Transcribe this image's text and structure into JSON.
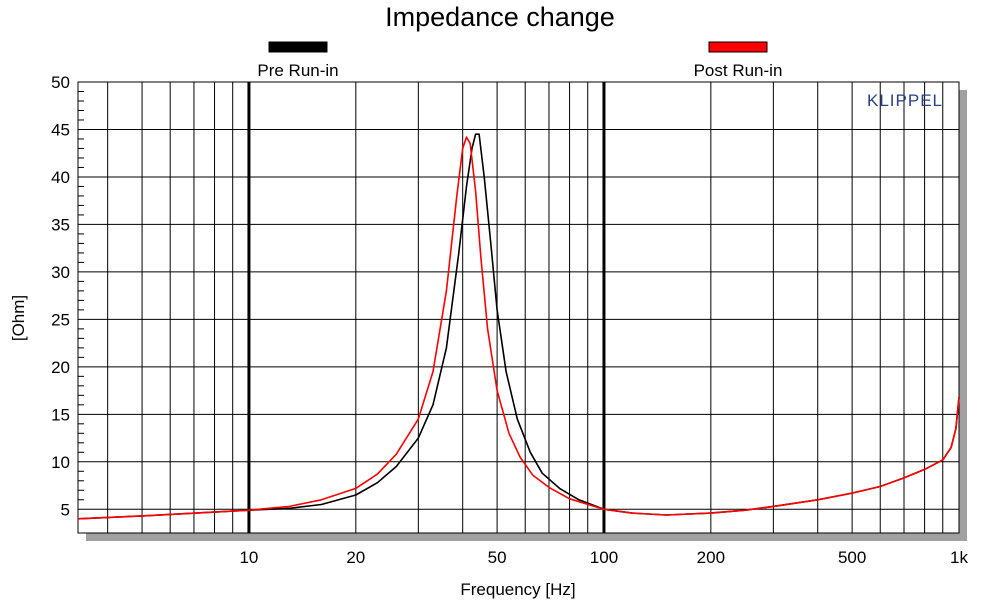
{
  "chart_data": {
    "type": "line",
    "title": "Impedance change",
    "xlabel": "Frequency [Hz]",
    "ylabel": "[Ohm]",
    "x_scale": "log",
    "xlim": [
      3.3,
      1000
    ],
    "ylim": [
      2.5,
      50
    ],
    "x_ticks": [
      {
        "value": 10,
        "label": "10"
      },
      {
        "value": 20,
        "label": "20"
      },
      {
        "value": 50,
        "label": "50"
      },
      {
        "value": 100,
        "label": "100"
      },
      {
        "value": 200,
        "label": "200"
      },
      {
        "value": 500,
        "label": "500"
      },
      {
        "value": 1000,
        "label": "1k"
      }
    ],
    "y_ticks": [
      5,
      10,
      15,
      20,
      25,
      30,
      35,
      40,
      45,
      50
    ],
    "grid": true,
    "legend_position": "top",
    "watermark": "KLIPPEL",
    "series": [
      {
        "name": "Pre Run-in",
        "color": "#000000",
        "points": [
          [
            3.3,
            4.0
          ],
          [
            5,
            4.3
          ],
          [
            8,
            4.7
          ],
          [
            10,
            4.9
          ],
          [
            13,
            5.1
          ],
          [
            16,
            5.5
          ],
          [
            20,
            6.5
          ],
          [
            23,
            7.8
          ],
          [
            26,
            9.5
          ],
          [
            30,
            12.5
          ],
          [
            33,
            16.0
          ],
          [
            36,
            22.0
          ],
          [
            39,
            32.0
          ],
          [
            41,
            39.0
          ],
          [
            42.5,
            43.0
          ],
          [
            43.5,
            44.5
          ],
          [
            44.5,
            44.5
          ],
          [
            46,
            40.0
          ],
          [
            48,
            33.0
          ],
          [
            50,
            26.0
          ],
          [
            53,
            19.5
          ],
          [
            57,
            14.5
          ],
          [
            62,
            11.0
          ],
          [
            67,
            8.8
          ],
          [
            75,
            7.2
          ],
          [
            85,
            6.0
          ],
          [
            100,
            5.0
          ],
          [
            120,
            4.6
          ],
          [
            150,
            4.4
          ],
          [
            200,
            4.6
          ],
          [
            250,
            4.9
          ],
          [
            300,
            5.3
          ],
          [
            400,
            6.0
          ],
          [
            500,
            6.7
          ],
          [
            600,
            7.4
          ],
          [
            700,
            8.3
          ],
          [
            800,
            9.2
          ],
          [
            900,
            10.2
          ],
          [
            950,
            11.5
          ],
          [
            980,
            13.5
          ],
          [
            1000,
            16.8
          ]
        ]
      },
      {
        "name": "Post Run-in",
        "color": "#ff0000",
        "points": [
          [
            3.3,
            4.0
          ],
          [
            5,
            4.3
          ],
          [
            8,
            4.7
          ],
          [
            10,
            4.9
          ],
          [
            13,
            5.3
          ],
          [
            16,
            6.0
          ],
          [
            20,
            7.2
          ],
          [
            23,
            8.7
          ],
          [
            26,
            10.8
          ],
          [
            30,
            14.5
          ],
          [
            33,
            19.5
          ],
          [
            36,
            28.0
          ],
          [
            38.5,
            38.0
          ],
          [
            40,
            43.0
          ],
          [
            41,
            44.2
          ],
          [
            42,
            43.5
          ],
          [
            43.5,
            38.5
          ],
          [
            45,
            31.5
          ],
          [
            47,
            24.0
          ],
          [
            50,
            17.5
          ],
          [
            54,
            13.0
          ],
          [
            58,
            10.5
          ],
          [
            63,
            8.6
          ],
          [
            70,
            7.3
          ],
          [
            80,
            6.1
          ],
          [
            100,
            5.0
          ],
          [
            120,
            4.6
          ],
          [
            150,
            4.4
          ],
          [
            200,
            4.6
          ],
          [
            250,
            4.9
          ],
          [
            300,
            5.3
          ],
          [
            400,
            6.0
          ],
          [
            500,
            6.7
          ],
          [
            600,
            7.4
          ],
          [
            700,
            8.3
          ],
          [
            800,
            9.2
          ],
          [
            900,
            10.2
          ],
          [
            950,
            11.5
          ],
          [
            980,
            13.5
          ],
          [
            1000,
            16.8
          ]
        ]
      }
    ]
  }
}
